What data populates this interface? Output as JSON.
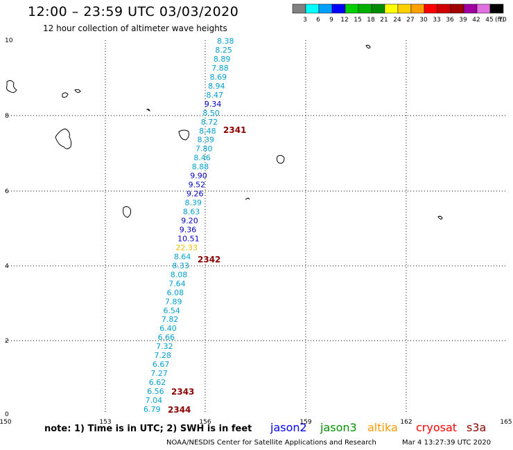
{
  "header": {
    "title": "12:00 – 23:59 UTC 03/03/2020",
    "subtitle": "12 hour collection of altimeter wave heights"
  },
  "legend": {
    "unit_label": "(ft)",
    "bins": [
      {
        "label": "3",
        "color": "#808080"
      },
      {
        "label": "6",
        "color": "#00ffff"
      },
      {
        "label": "9",
        "color": "#00a0ff"
      },
      {
        "label": "12",
        "color": "#0000ff"
      },
      {
        "label": "15",
        "color": "#00d000"
      },
      {
        "label": "18",
        "color": "#00b000"
      },
      {
        "label": "21",
        "color": "#008c00"
      },
      {
        "label": "24",
        "color": "#ffff00"
      },
      {
        "label": "27",
        "color": "#ffd000"
      },
      {
        "label": "30",
        "color": "#ffa000"
      },
      {
        "label": "33",
        "color": "#ff0000"
      },
      {
        "label": "36",
        "color": "#d00000"
      },
      {
        "label": "39",
        "color": "#a00000"
      },
      {
        "label": "42",
        "color": "#a000a0"
      },
      {
        "label": "45",
        "color": "#e070e0"
      },
      {
        "label": "70",
        "color": "#000000"
      }
    ]
  },
  "axes": {
    "lon_ticks": [
      "150",
      "153",
      "156",
      "159",
      "162",
      "165"
    ],
    "lat_ticks": [
      "0",
      "2",
      "4",
      "6",
      "8",
      "10"
    ]
  },
  "track_points": [
    {
      "v": "8.38",
      "c": "#00a0d0"
    },
    {
      "v": "8.25",
      "c": "#00a0d0"
    },
    {
      "v": "8.89",
      "c": "#00a0d0"
    },
    {
      "v": "7.88",
      "c": "#00a0d0"
    },
    {
      "v": "8.69",
      "c": "#00a0d0"
    },
    {
      "v": "8.94",
      "c": "#00a0d0"
    },
    {
      "v": "8.47",
      "c": "#00a0d0"
    },
    {
      "v": "9.34",
      "c": "#0000cc"
    },
    {
      "v": "8.50",
      "c": "#00a0d0"
    },
    {
      "v": "8.72",
      "c": "#00a0d0"
    },
    {
      "v": "8.48",
      "c": "#00a0d0"
    },
    {
      "v": "8.39",
      "c": "#00a0d0"
    },
    {
      "v": "7.80",
      "c": "#00a0d0"
    },
    {
      "v": "8.46",
      "c": "#00a0d0"
    },
    {
      "v": "8.88",
      "c": "#00a0d0"
    },
    {
      "v": "9.90",
      "c": "#0000cc"
    },
    {
      "v": "9.52",
      "c": "#0000cc"
    },
    {
      "v": "9.26",
      "c": "#0000cc"
    },
    {
      "v": "8.39",
      "c": "#00a0d0"
    },
    {
      "v": "8.63",
      "c": "#00a0d0"
    },
    {
      "v": "9.20",
      "c": "#0000cc"
    },
    {
      "v": "9.36",
      "c": "#0000cc"
    },
    {
      "v": "10.51",
      "c": "#0000cc"
    },
    {
      "v": "22.33",
      "c": "#f0c000"
    },
    {
      "v": "8.64",
      "c": "#00a0d0"
    },
    {
      "v": "8.33",
      "c": "#00a0d0"
    },
    {
      "v": "8.08",
      "c": "#00a0d0"
    },
    {
      "v": "7.64",
      "c": "#00a0d0"
    },
    {
      "v": "6.08",
      "c": "#00a0d0"
    },
    {
      "v": "7.89",
      "c": "#00a0d0"
    },
    {
      "v": "6.54",
      "c": "#00a0d0"
    },
    {
      "v": "7.82",
      "c": "#00a0d0"
    },
    {
      "v": "6.40",
      "c": "#00a0d0"
    },
    {
      "v": "6.66",
      "c": "#00a0d0"
    },
    {
      "v": "7.32",
      "c": "#00a0d0"
    },
    {
      "v": "7.28",
      "c": "#00a0d0"
    },
    {
      "v": "6.67",
      "c": "#00a0d0"
    },
    {
      "v": "7.27",
      "c": "#00a0d0"
    },
    {
      "v": "6.62",
      "c": "#00a0d0"
    },
    {
      "v": "6.56",
      "c": "#00a0d0"
    },
    {
      "v": "7.04",
      "c": "#00a0d0"
    },
    {
      "v": "6.79",
      "c": "#00a0d0"
    }
  ],
  "time_labels": [
    "2341",
    "2342",
    "2343",
    "2344"
  ],
  "footer": {
    "note": "note:  1) Time is in UTC;  2) SWH is in feet",
    "satellites": [
      {
        "name": "jason2",
        "color": "#0000ff"
      },
      {
        "name": "jason3",
        "color": "#009000"
      },
      {
        "name": "altika",
        "color": "#ff9900"
      },
      {
        "name": "cryosat",
        "color": "#ff0000"
      },
      {
        "name": "s3a",
        "color": "#8b0000"
      }
    ],
    "credit": "NOAA/NESDIS Center for Satellite Applications and Research",
    "timestamp": "Mar  4 13:27:39 UTC 2020"
  }
}
